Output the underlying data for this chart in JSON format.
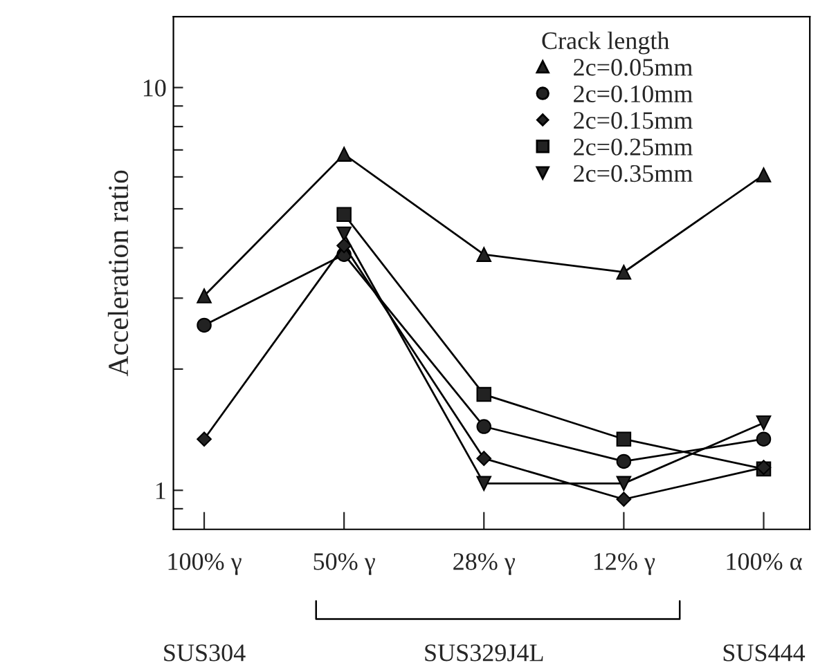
{
  "chart_data": {
    "type": "line",
    "ylabel": "Acceleration ratio",
    "legend_title": "Crack length",
    "legend": "top right",
    "log": true,
    "grid": false,
    "categories": [
      "100% γ",
      "50% γ",
      "28% γ",
      "12% γ",
      "100% α"
    ],
    "ylim": [
      0.8,
      15
    ],
    "yticks": [
      {
        "value": 0.9,
        "label": null
      },
      1,
      {
        "value": 2,
        "label": null
      },
      {
        "value": 3,
        "label": null
      },
      {
        "value": 4,
        "label": null
      },
      {
        "value": 5,
        "label": null
      },
      {
        "value": 6,
        "label": null
      },
      {
        "value": 7,
        "label": null
      },
      {
        "value": 8,
        "label": null
      },
      {
        "value": 9,
        "label": null
      },
      10
    ],
    "series": [
      {
        "name": "2c=0.05mm",
        "color": "#222222",
        "marker": "triangle",
        "values": [
          3.04,
          6.83,
          3.85,
          3.48,
          6.07
        ]
      },
      {
        "name": "2c=0.10mm",
        "color": "#222222",
        "marker": "circle",
        "values": [
          2.57,
          3.85,
          1.44,
          1.18,
          1.34
        ]
      },
      {
        "name": "2c=0.15mm",
        "color": "#222222",
        "marker": "diamond",
        "values": [
          1.34,
          4.05,
          1.2,
          0.95,
          1.14
        ]
      },
      {
        "name": "2c=0.25mm",
        "color": "#222222",
        "marker": "square",
        "values": [
          null,
          4.84,
          1.73,
          1.34,
          1.13
        ]
      },
      {
        "name": "2c=0.35mm",
        "color": "#222222",
        "marker": "triangle_down",
        "values": [
          null,
          4.33,
          1.04,
          1.04,
          1.47
        ]
      }
    ],
    "annotations": [
      "SUS304",
      "SUS329J4L",
      "SUS444"
    ]
  }
}
